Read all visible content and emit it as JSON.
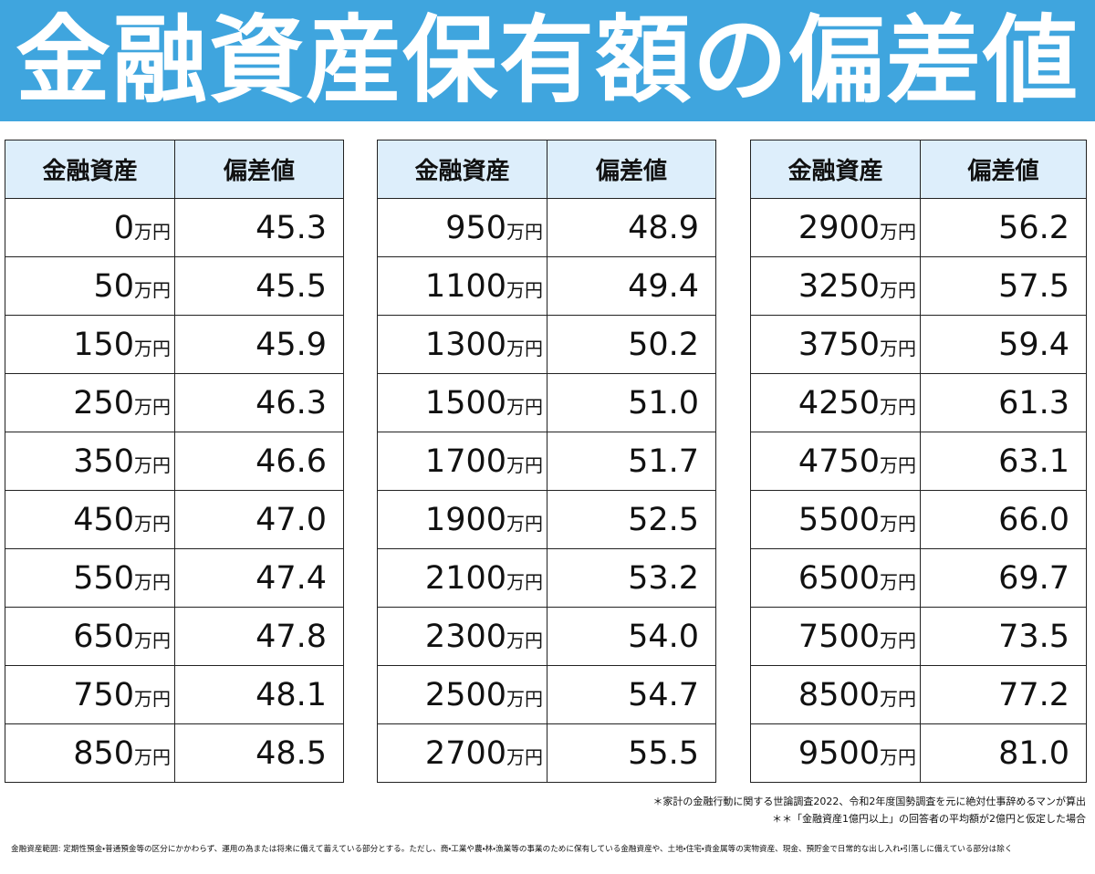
{
  "header": {
    "title": "金融資産保有額の偏差値"
  },
  "tables": [
    {
      "columns": [
        "金融資産",
        "偏差値"
      ],
      "rows": [
        {
          "amount": "0",
          "unit": "万円",
          "score": "45.3"
        },
        {
          "amount": "50",
          "unit": "万円",
          "score": "45.5"
        },
        {
          "amount": "150",
          "unit": "万円",
          "score": "45.9"
        },
        {
          "amount": "250",
          "unit": "万円",
          "score": "46.3"
        },
        {
          "amount": "350",
          "unit": "万円",
          "score": "46.6"
        },
        {
          "amount": "450",
          "unit": "万円",
          "score": "47.0"
        },
        {
          "amount": "550",
          "unit": "万円",
          "score": "47.4"
        },
        {
          "amount": "650",
          "unit": "万円",
          "score": "47.8"
        },
        {
          "amount": "750",
          "unit": "万円",
          "score": "48.1"
        },
        {
          "amount": "850",
          "unit": "万円",
          "score": "48.5"
        }
      ]
    },
    {
      "columns": [
        "金融資産",
        "偏差値"
      ],
      "rows": [
        {
          "amount": "950",
          "unit": "万円",
          "score": "48.9"
        },
        {
          "amount": "1100",
          "unit": "万円",
          "score": "49.4"
        },
        {
          "amount": "1300",
          "unit": "万円",
          "score": "50.2"
        },
        {
          "amount": "1500",
          "unit": "万円",
          "score": "51.0"
        },
        {
          "amount": "1700",
          "unit": "万円",
          "score": "51.7"
        },
        {
          "amount": "1900",
          "unit": "万円",
          "score": "52.5"
        },
        {
          "amount": "2100",
          "unit": "万円",
          "score": "53.2"
        },
        {
          "amount": "2300",
          "unit": "万円",
          "score": "54.0"
        },
        {
          "amount": "2500",
          "unit": "万円",
          "score": "54.7"
        },
        {
          "amount": "2700",
          "unit": "万円",
          "score": "55.5"
        }
      ]
    },
    {
      "columns": [
        "金融資産",
        "偏差値"
      ],
      "rows": [
        {
          "amount": "2900",
          "unit": "万円",
          "score": "56.2"
        },
        {
          "amount": "3250",
          "unit": "万円",
          "score": "57.5"
        },
        {
          "amount": "3750",
          "unit": "万円",
          "score": "59.4"
        },
        {
          "amount": "4250",
          "unit": "万円",
          "score": "61.3"
        },
        {
          "amount": "4750",
          "unit": "万円",
          "score": "63.1"
        },
        {
          "amount": "5500",
          "unit": "万円",
          "score": "66.0"
        },
        {
          "amount": "6500",
          "unit": "万円",
          "score": "69.7"
        },
        {
          "amount": "7500",
          "unit": "万円",
          "score": "73.5"
        },
        {
          "amount": "8500",
          "unit": "万円",
          "score": "77.2"
        },
        {
          "amount": "9500",
          "unit": "万円",
          "score": "81.0"
        }
      ]
    }
  ],
  "notes": [
    "＊家計の金融行動に関する世論調査2022、令和2年度国勢調査を元に絶対仕事辞めるマンが算出",
    "＊＊「金融資産1億円以上」の回答者の平均額が2億円と仮定した場合"
  ],
  "definition": "金融資産範囲: 定期性預金・普通預金等の区分にかかわらず、運用の為または将来に備えて蓄えている部分とする。ただし、商・工業や農・林・漁業等の事業のために保有している金融資産や、土地・住宅・貴金属等の実物資産、現金、預貯金で日常的な出し入れ・引落しに備えている部分は除く"
}
